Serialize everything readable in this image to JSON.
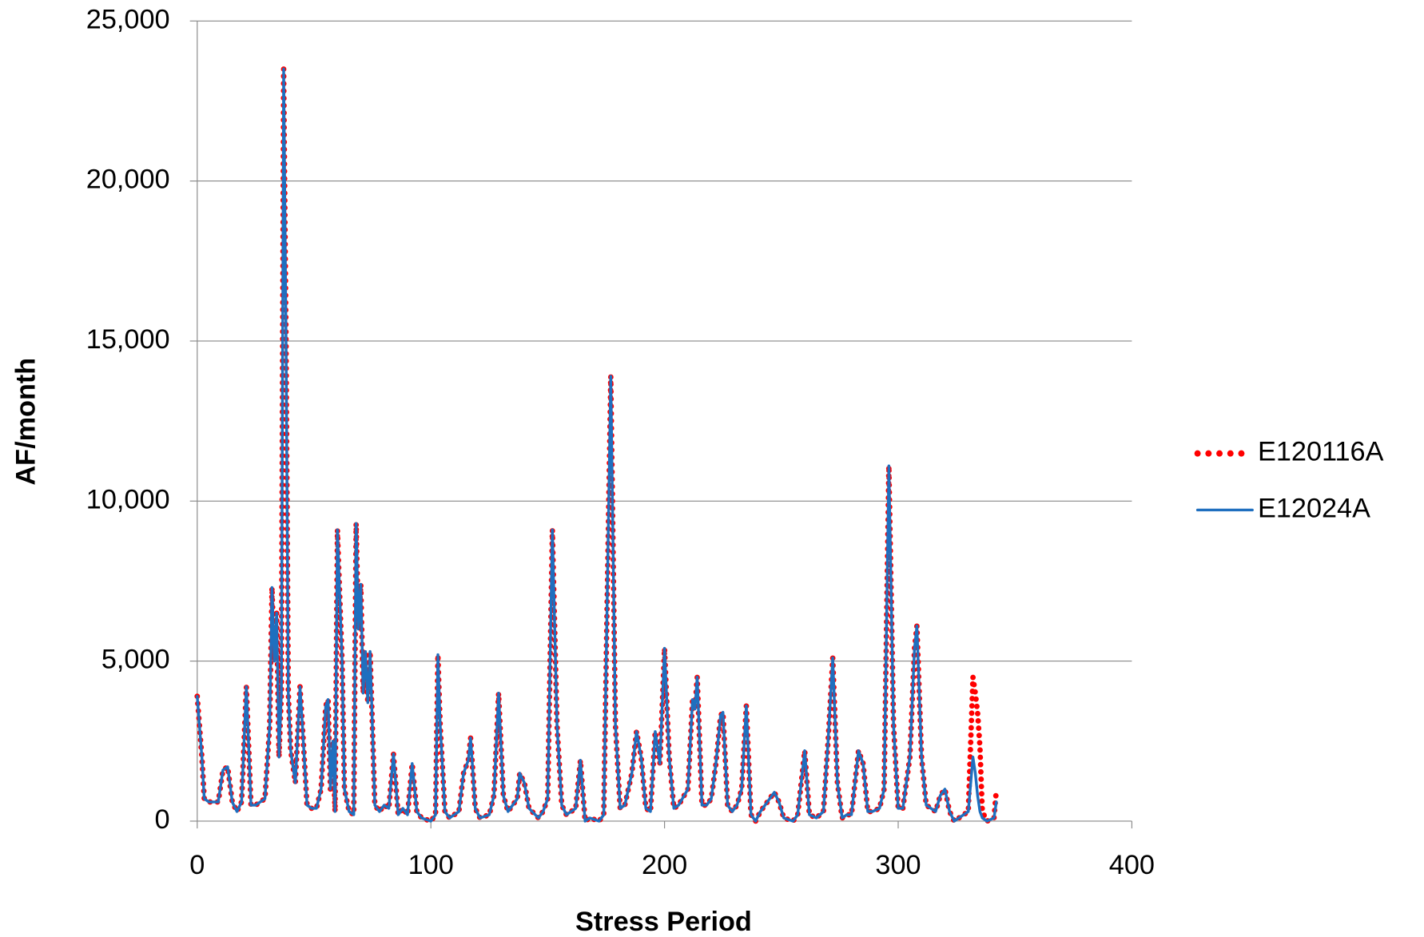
{
  "chart_data": {
    "type": "line",
    "x_label": "Stress Period",
    "y_label": "AF/month",
    "x": [
      0,
      2,
      3,
      5,
      9,
      11,
      13,
      15,
      17,
      19,
      21,
      23,
      25,
      29,
      31,
      32,
      33,
      34,
      35,
      36,
      37,
      38,
      39,
      40,
      42,
      44,
      45,
      47,
      49,
      51,
      53,
      55,
      56,
      57,
      58,
      59,
      60,
      61,
      62,
      63,
      65,
      67,
      68,
      69,
      70,
      71,
      72,
      73,
      74,
      76,
      78,
      80,
      82,
      84,
      86,
      88,
      90,
      92,
      94,
      96,
      100,
      102,
      103,
      104,
      106,
      108,
      112,
      114,
      116,
      117,
      118,
      119,
      121,
      125,
      127,
      129,
      131,
      133,
      137,
      138,
      140,
      142,
      146,
      148,
      150,
      152,
      154,
      156,
      158,
      162,
      164,
      166,
      168,
      172,
      174,
      177,
      179,
      181,
      183,
      186,
      188,
      190,
      192,
      194,
      196,
      198,
      200,
      202,
      204,
      206,
      210,
      212,
      213,
      214,
      216,
      218,
      220,
      222,
      224,
      225,
      227,
      229,
      231,
      233,
      235,
      237,
      239,
      241,
      243,
      245,
      247,
      249,
      251,
      255,
      257,
      260,
      262,
      265,
      268,
      270,
      272,
      274,
      276,
      278,
      280,
      283,
      285,
      287,
      289,
      292,
      294,
      296,
      298,
      300,
      302,
      305,
      307,
      308,
      310,
      312,
      316,
      318,
      320,
      322,
      324,
      328,
      330,
      332,
      333,
      334,
      335,
      336,
      338,
      341,
      342
    ],
    "series": [
      {
        "name": "E120116A",
        "color": "#ff0000",
        "style": "dotted",
        "values": [
          3900,
          2000,
          700,
          600,
          600,
          1600,
          1700,
          600,
          300,
          600,
          4200,
          500,
          500,
          700,
          3000,
          7300,
          5000,
          6500,
          2000,
          4000,
          23500,
          15000,
          4000,
          2200,
          1200,
          4200,
          3000,
          500,
          400,
          400,
          1000,
          3600,
          3800,
          1000,
          2500,
          300,
          9100,
          7000,
          5000,
          1000,
          300,
          200,
          9300,
          6000,
          7400,
          4000,
          5300,
          3700,
          5300,
          500,
          300,
          500,
          400,
          2100,
          200,
          400,
          200,
          1800,
          300,
          100,
          0,
          200,
          5200,
          3000,
          300,
          100,
          300,
          1500,
          1900,
          2600,
          1500,
          400,
          100,
          200,
          800,
          4000,
          800,
          300,
          700,
          1500,
          1200,
          400,
          100,
          300,
          700,
          9100,
          3000,
          500,
          200,
          400,
          1900,
          0,
          100,
          0,
          200,
          13900,
          3000,
          400,
          500,
          1500,
          2800,
          2000,
          400,
          300,
          2800,
          1800,
          5400,
          2000,
          400,
          500,
          1000,
          3800,
          3500,
          4500,
          500,
          500,
          700,
          1800,
          3300,
          3400,
          500,
          300,
          500,
          1000,
          3600,
          200,
          0,
          300,
          500,
          700,
          900,
          600,
          100,
          0,
          200,
          2200,
          200,
          100,
          300,
          2500,
          5100,
          1200,
          100,
          200,
          200,
          2200,
          1800,
          300,
          300,
          400,
          1000,
          11100,
          3000,
          400,
          400,
          2000,
          5400,
          6100,
          2000,
          500,
          300,
          800,
          1000,
          300,
          0,
          200,
          300,
          4500,
          4000,
          3400,
          2300,
          300,
          0,
          100,
          960
        ]
      },
      {
        "name": "E12024A",
        "color": "#1f6fbf",
        "style": "solid",
        "values": [
          3900,
          2000,
          700,
          600,
          600,
          1600,
          1700,
          600,
          300,
          600,
          4200,
          500,
          500,
          700,
          3000,
          7300,
          5000,
          6500,
          2000,
          4000,
          23500,
          15000,
          4000,
          2200,
          1200,
          4200,
          3000,
          500,
          400,
          400,
          1000,
          3600,
          3800,
          1000,
          2500,
          300,
          9100,
          7000,
          5000,
          1000,
          300,
          200,
          9300,
          6000,
          7400,
          4000,
          5300,
          3700,
          5300,
          500,
          300,
          500,
          400,
          2100,
          200,
          400,
          200,
          1800,
          300,
          100,
          0,
          200,
          5200,
          3000,
          300,
          100,
          300,
          1500,
          1900,
          2600,
          1500,
          400,
          100,
          200,
          800,
          4000,
          800,
          300,
          700,
          1500,
          1200,
          400,
          100,
          300,
          700,
          9100,
          3000,
          500,
          200,
          400,
          1900,
          0,
          100,
          0,
          200,
          13900,
          3000,
          400,
          500,
          1500,
          2800,
          2000,
          400,
          300,
          2800,
          1800,
          5400,
          2000,
          400,
          500,
          1000,
          3800,
          3500,
          4500,
          500,
          500,
          700,
          1800,
          3300,
          3400,
          500,
          300,
          500,
          1000,
          3600,
          200,
          0,
          300,
          500,
          700,
          900,
          600,
          100,
          0,
          200,
          2200,
          200,
          100,
          300,
          2500,
          5100,
          1200,
          100,
          200,
          200,
          2200,
          1800,
          300,
          300,
          400,
          1000,
          11100,
          3000,
          400,
          400,
          2000,
          5400,
          6100,
          2000,
          500,
          300,
          800,
          1000,
          300,
          0,
          200,
          300,
          2000,
          1500,
          800,
          300,
          100,
          0,
          100,
          600
        ]
      }
    ],
    "xlim": [
      0,
      400
    ],
    "xticks": [
      0,
      100,
      200,
      300,
      400
    ],
    "ylim": [
      0,
      25000
    ],
    "yticks": [
      0,
      {
        "value": 5000,
        "label": "5,000"
      },
      {
        "value": 10000,
        "label": "10,000"
      },
      {
        "value": 15000,
        "label": "15,000"
      },
      {
        "value": 20000,
        "label": "20,000"
      },
      {
        "value": 25000,
        "label": "25,000"
      }
    ],
    "grid": true,
    "legend": "right"
  }
}
